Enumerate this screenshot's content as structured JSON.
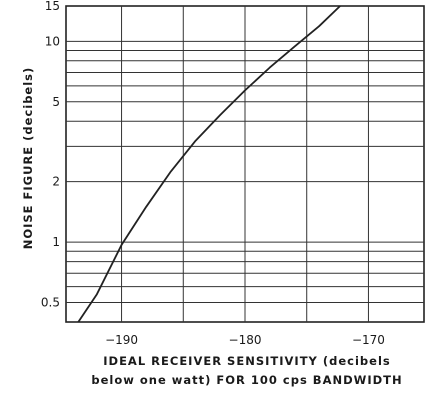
{
  "chart_data": {
    "type": "line",
    "xlabel_line1": "IDEAL RECEIVER SENSITIVITY (decibels",
    "xlabel_line2": "below one watt) FOR 100 cps BANDWIDTH",
    "ylabel": "NOISE FIGURE (decibels)",
    "x_scale": "linear",
    "y_scale": "log",
    "xlim": [
      -194.5,
      -165.5
    ],
    "ylim": [
      0.4,
      15
    ],
    "x_ticks": [
      -190,
      -180,
      -170
    ],
    "x_tick_labels": [
      "−190",
      "−180",
      "−170"
    ],
    "y_ticks": [
      0.5,
      1,
      2,
      5,
      10,
      15
    ],
    "y_tick_labels": [
      "0.5",
      "1",
      "2",
      "5",
      "10",
      "15"
    ],
    "y_gridlines": [
      0.5,
      0.6,
      0.7,
      0.8,
      0.9,
      1,
      2,
      3,
      4,
      5,
      6,
      7,
      8,
      9,
      10,
      15
    ],
    "grid": true,
    "series": [
      {
        "x": [
          -193.5,
          -192,
          -190,
          -188,
          -186,
          -184,
          -182,
          -180,
          -178,
          -176,
          -174,
          -172.3
        ],
        "y": [
          0.4,
          0.55,
          0.97,
          1.5,
          2.25,
          3.2,
          4.3,
          5.7,
          7.4,
          9.4,
          11.9,
          15
        ]
      }
    ]
  }
}
